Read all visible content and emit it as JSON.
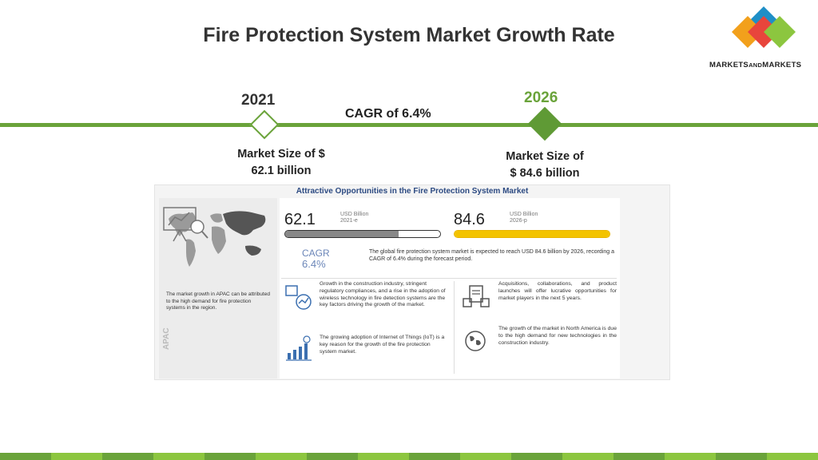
{
  "slide": {
    "title": "Fire Protection System Market Growth Rate"
  },
  "logo": {
    "text_main": "MARKETS",
    "text_and": "AND",
    "text_end": "MARKETS",
    "colors": [
      "#1f8fc7",
      "#e8453c",
      "#f2a01c",
      "#8cc63f"
    ]
  },
  "timeline": {
    "year_start": "2021",
    "year_end": "2026",
    "cagr": "CAGR of 6.4%",
    "size_start_line1": "Market Size of $",
    "size_start_line2": "62.1 billion",
    "size_end_line1": "Market Size of",
    "size_end_line2": "$ 84.6 billion",
    "accent_color": "#6aa33a"
  },
  "infographic": {
    "title": "Attractive Opportunities in the Fire Protection System Market",
    "value_2021": "62.1",
    "unit_2021": "USD Billion",
    "label_2021": "2021-e",
    "value_2026": "84.6",
    "unit_2026": "USD Billion",
    "label_2026": "2026-p",
    "bar_fill_2021": 0.73,
    "bar_fill_2026": 1.0,
    "cagr_label": "CAGR",
    "cagr_value": "6.4%",
    "summary": "The global fire protection system market is expected to reach USD 84.6 billion by 2026, recording a CAGR of 6.4% during the forecast period.",
    "apac_text": "The market growth in APAC can be attributed to the high demand for fire protection systems in the region.",
    "apac_label": "APAC",
    "fact_1": "Growth in the construction industry, stringent regulatory compliances, and a rise in the adoption of wireless technology in fire detection systems are the key factors driving the growth of the market.",
    "fact_2": "The growing adoption of Internet of Things (IoT) is a key reason for the growth of the fire protection system market.",
    "fact_3": "Acquisitions, collaborations, and product launches will offer lucrative opportunities for market players in the next 5 years.",
    "fact_4": "The growth of the market in North America is due to the high demand for new technologies in the construction industry."
  },
  "footer_colors": [
    "#6aa33a",
    "#8cc63f",
    "#6aa33a",
    "#8cc63f",
    "#6aa33a",
    "#8cc63f",
    "#6aa33a",
    "#8cc63f",
    "#6aa33a",
    "#8cc63f",
    "#6aa33a",
    "#8cc63f",
    "#6aa33a",
    "#8cc63f",
    "#6aa33a",
    "#8cc63f"
  ]
}
